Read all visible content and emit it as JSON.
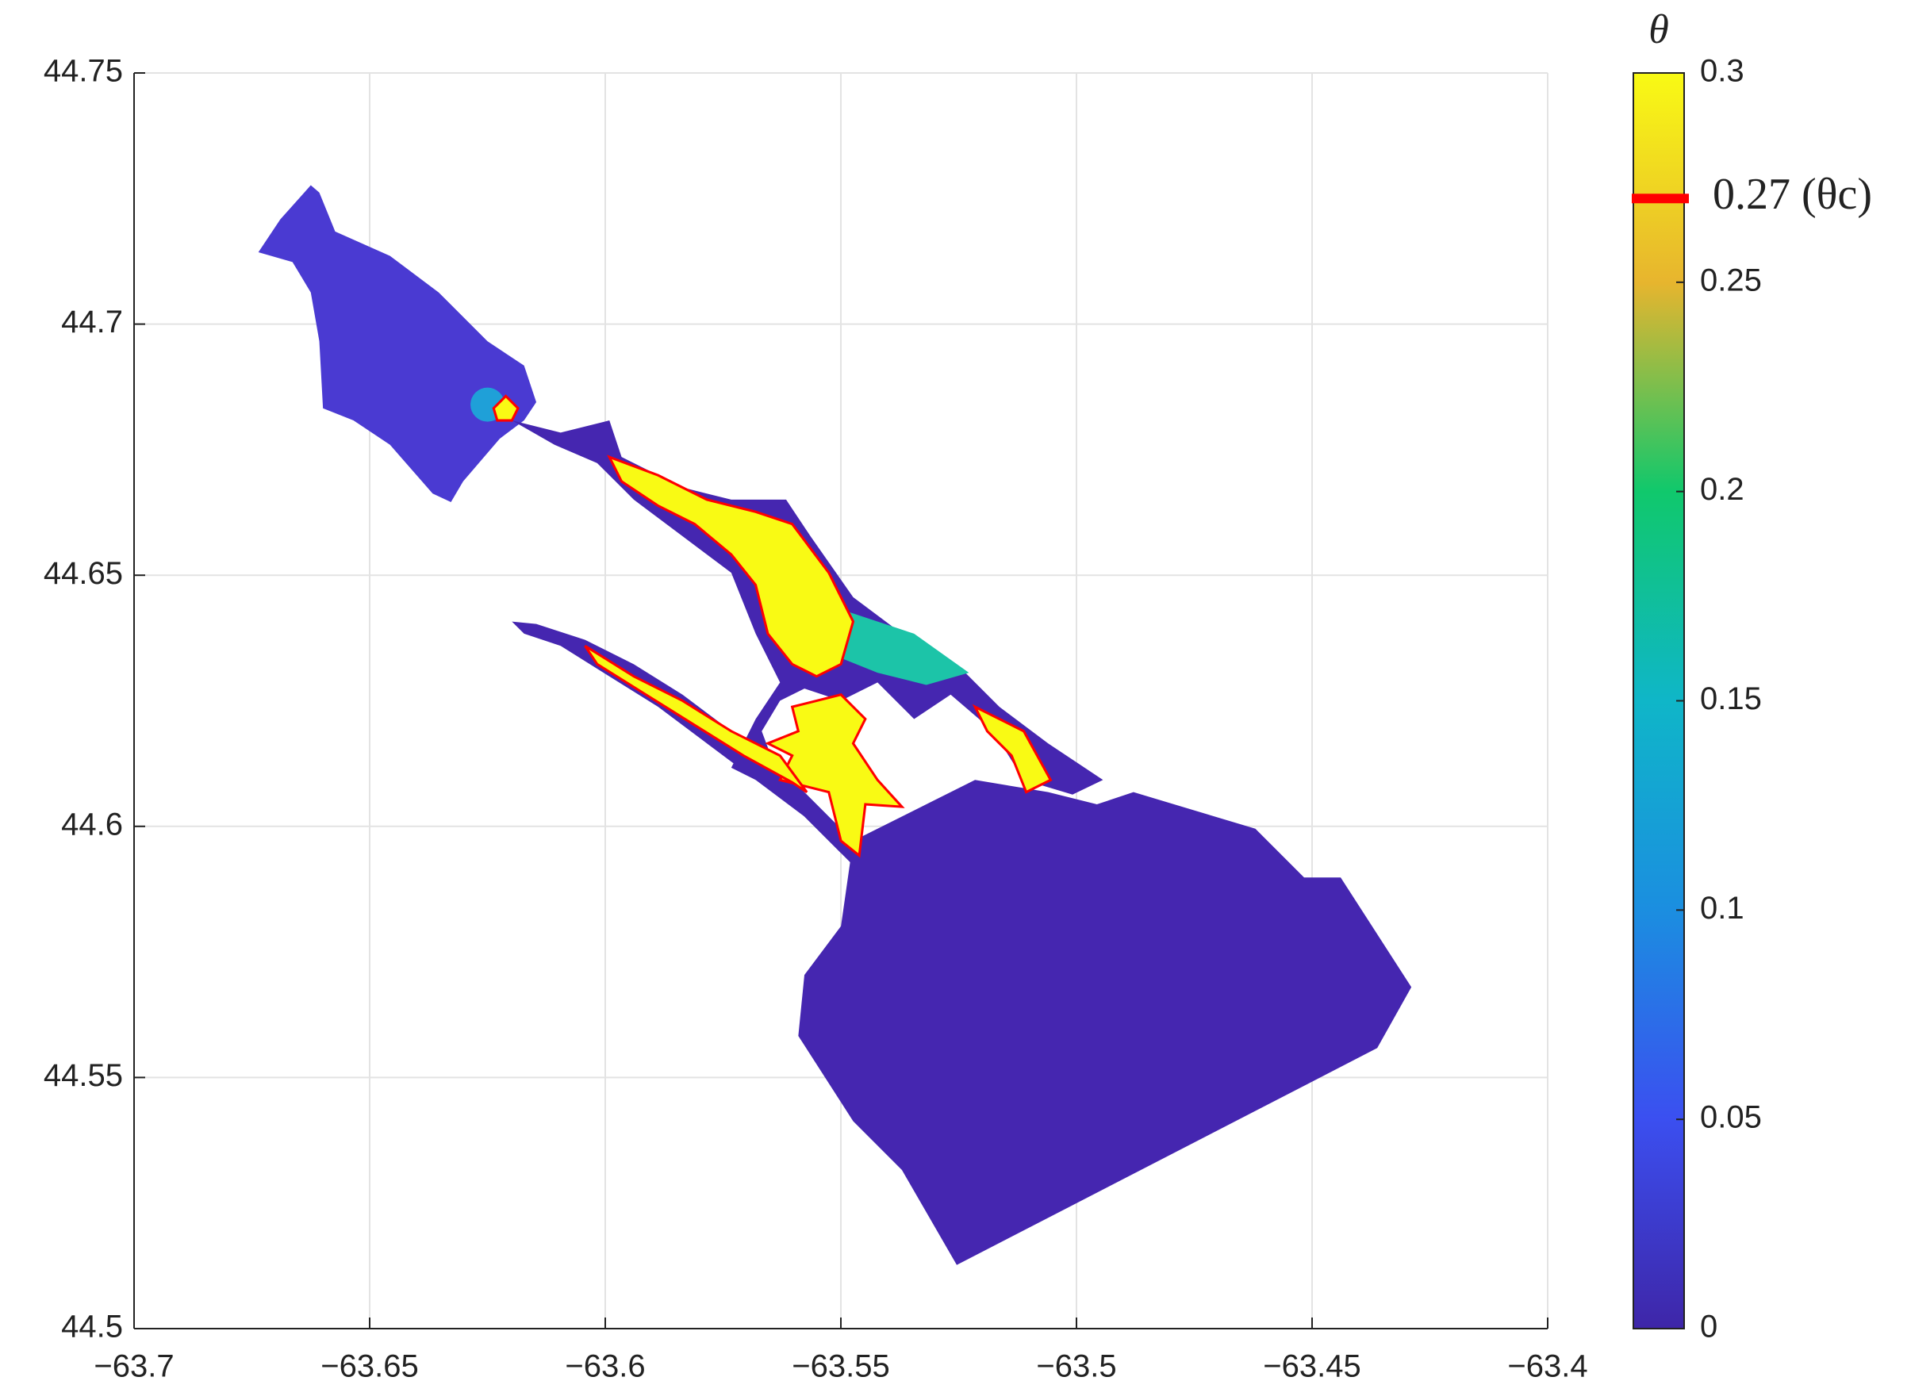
{
  "chart_data": {
    "type": "map",
    "xlim": [
      -63.7,
      -63.4
    ],
    "xticks": [
      {
        "value": -63.7,
        "label": "−63.7"
      },
      {
        "value": -63.65,
        "label": "−63.65"
      },
      {
        "value": -63.6,
        "label": "−63.6"
      },
      {
        "value": -63.55,
        "label": "−63.55"
      },
      {
        "value": -63.5,
        "label": "−63.5"
      },
      {
        "value": -63.45,
        "label": "−63.45"
      },
      {
        "value": -63.4,
        "label": "−63.4"
      }
    ],
    "ylim": [
      44.5,
      44.75
    ],
    "yticks": [
      44.5,
      44.55,
      44.6,
      44.65,
      44.7,
      44.75
    ],
    "grid": true,
    "colorbar": {
      "label": "θ",
      "clim": [
        0,
        0.3
      ],
      "ticks": [
        0,
        0.05,
        0.1,
        0.15,
        0.2,
        0.25,
        0.3
      ],
      "colors": [
        "#3e26a8",
        "#3b4ff0",
        "#1b8ee0",
        "#0fb6c8",
        "#10c86c",
        "#e7b52e",
        "#f9fa14"
      ],
      "threshold": {
        "value": 0.27,
        "label": "0.27 (θc)",
        "color": "#ff0000"
      }
    }
  }
}
